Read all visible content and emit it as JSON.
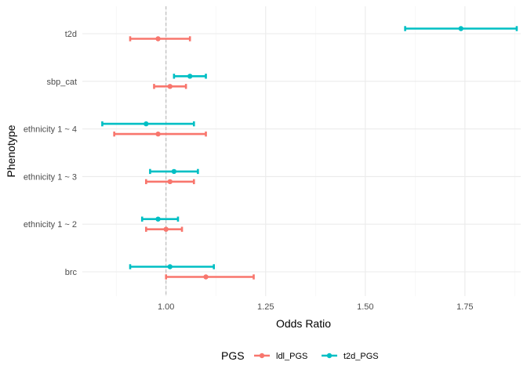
{
  "chart_data": {
    "type": "errorbar",
    "title": "",
    "xlabel": "Odds Ratio",
    "ylabel": "Phenotype",
    "xlim": [
      0.79,
      1.89
    ],
    "x_ticks": [
      "1.00",
      "1.25",
      "1.50",
      "1.75"
    ],
    "x_tick_values": [
      1.0,
      1.25,
      1.5,
      1.75
    ],
    "reference_line": 1.0,
    "grid": true,
    "categories": [
      "t2d",
      "sbp_cat",
      "ethnicity 1 ~ 4",
      "ethnicity 1 ~ 3",
      "ethnicity 1 ~ 2",
      "brc"
    ],
    "legend": {
      "title": "PGS",
      "position": "bottom"
    },
    "series": [
      {
        "name": "ldl_PGS",
        "color": "#F8766D",
        "points": [
          {
            "category": "t2d",
            "or": 0.98,
            "lo": 0.91,
            "hi": 1.06
          },
          {
            "category": "sbp_cat",
            "or": 1.01,
            "lo": 0.97,
            "hi": 1.05
          },
          {
            "category": "ethnicity 1 ~ 4",
            "or": 0.98,
            "lo": 0.87,
            "hi": 1.1
          },
          {
            "category": "ethnicity 1 ~ 3",
            "or": 1.01,
            "lo": 0.95,
            "hi": 1.07
          },
          {
            "category": "ethnicity 1 ~ 2",
            "or": 1.0,
            "lo": 0.95,
            "hi": 1.04
          },
          {
            "category": "brc",
            "or": 1.1,
            "lo": 1.0,
            "hi": 1.22
          }
        ]
      },
      {
        "name": "t2d_PGS",
        "color": "#00BFC4",
        "points": [
          {
            "category": "t2d",
            "or": 1.74,
            "lo": 1.6,
            "hi": 1.88
          },
          {
            "category": "sbp_cat",
            "or": 1.06,
            "lo": 1.02,
            "hi": 1.1
          },
          {
            "category": "ethnicity 1 ~ 4",
            "or": 0.95,
            "lo": 0.84,
            "hi": 1.07
          },
          {
            "category": "ethnicity 1 ~ 3",
            "or": 1.02,
            "lo": 0.96,
            "hi": 1.08
          },
          {
            "category": "ethnicity 1 ~ 2",
            "or": 0.98,
            "lo": 0.94,
            "hi": 1.03
          },
          {
            "category": "brc",
            "or": 1.01,
            "lo": 0.91,
            "hi": 1.12
          }
        ]
      }
    ]
  }
}
